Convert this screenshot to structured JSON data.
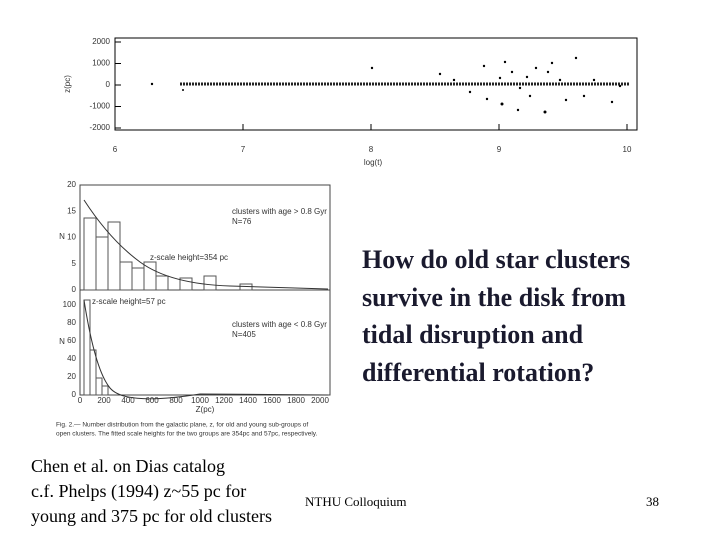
{
  "slide": {
    "question": [
      "How do old star clusters",
      "survive in the disk from",
      "tidal disruption and",
      "differential rotation?"
    ],
    "notes": [
      "Chen et al. on Dias catalog",
      "c.f. Phelps (1994) z~55 pc for",
      "young and 375 pc for old clusters"
    ],
    "footer": "NTHU Colloquium",
    "page_number": 38
  },
  "figure_top": {
    "y_label": "z(pc)",
    "x_label": "log(t)",
    "yticks": [
      2000,
      1000,
      0,
      -1000,
      -2000
    ],
    "xticks": [
      6,
      7,
      8,
      9,
      10
    ]
  },
  "figure_hist": {
    "y_label_top": "N",
    "y_label_bottom": "N",
    "x_label": "Z(pc)",
    "yticks_top": [
      20,
      15,
      10,
      5,
      0
    ],
    "yticks_bottom": [
      100,
      80,
      60,
      40,
      20,
      0
    ],
    "xticks": [
      0,
      200,
      400,
      600,
      800,
      1000,
      1200,
      1400,
      1600,
      1800,
      2000
    ],
    "old_group": [
      "clusters with age > 0.8 Gyr",
      "N=76",
      "z-scale height=354 pc"
    ],
    "young_group": [
      "clusters with age < 0.8 Gyr",
      "N=405",
      "z-scale height=57 pc"
    ],
    "caption": [
      "Fig. 2.— Number distribution from the galactic plane, z, for old and young sub-groups of",
      "open clusters. The fitted scale heights for the two groups are 354pc and 57pc, respectively."
    ]
  }
}
